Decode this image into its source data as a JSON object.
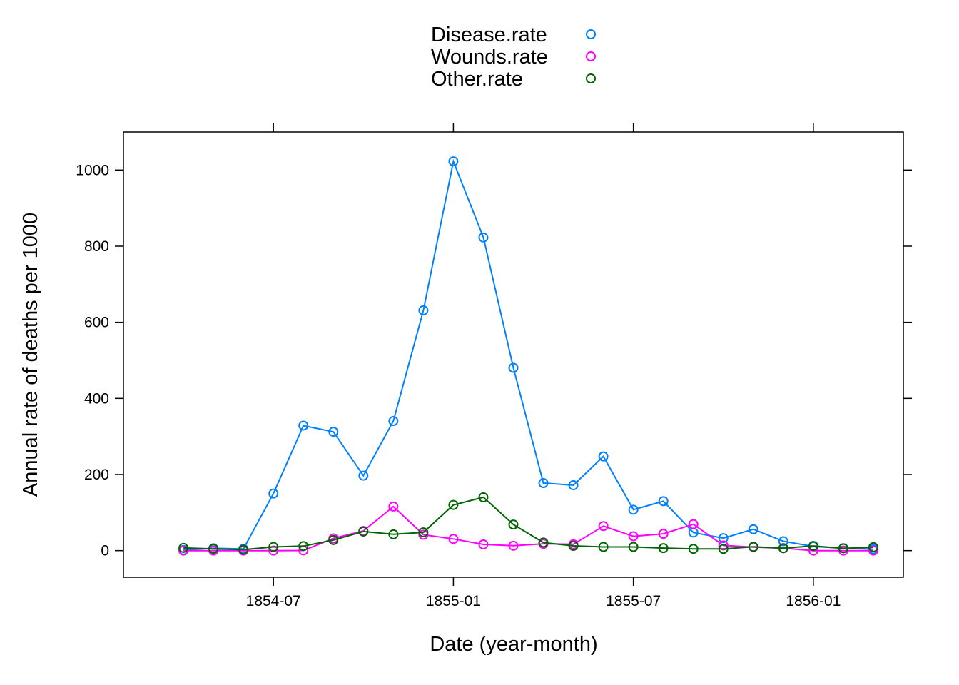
{
  "chart_data": {
    "type": "line",
    "xlabel": "Date (year-month)",
    "ylabel": "Annual rate of deaths per 1000",
    "x": [
      "1854-04",
      "1854-05",
      "1854-06",
      "1854-07",
      "1854-08",
      "1854-09",
      "1854-10",
      "1854-11",
      "1854-12",
      "1855-01",
      "1855-02",
      "1855-03",
      "1855-04",
      "1855-05",
      "1855-06",
      "1855-07",
      "1855-08",
      "1855-09",
      "1855-10",
      "1855-11",
      "1855-12",
      "1856-01",
      "1856-02",
      "1856-03"
    ],
    "x_ticks": [
      "1854-07",
      "1855-01",
      "1855-07",
      "1856-01"
    ],
    "y_ticks": [
      0,
      200,
      400,
      600,
      800,
      1000
    ],
    "xlim": [
      "1854-02",
      "1856-04"
    ],
    "ylim": [
      -70,
      1100
    ],
    "grid": false,
    "legend_position": "top",
    "series": [
      {
        "name": "Disease.rate",
        "color": "#0080ff",
        "values": [
          1.4,
          6.2,
          4.7,
          150.0,
          328.5,
          312.2,
          197.0,
          340.6,
          631.5,
          1022.8,
          822.8,
          480.3,
          177.5,
          171.8,
          247.6,
          107.5,
          129.9,
          47.5,
          32.8,
          56.1,
          24.6,
          10.9,
          6.5,
          3.9
        ]
      },
      {
        "name": "Wounds.rate",
        "color": "#ff00ff",
        "values": [
          0.0,
          0.0,
          0.0,
          0.0,
          0.4,
          32.1,
          51.7,
          115.8,
          41.7,
          30.7,
          16.3,
          12.8,
          17.9,
          16.6,
          64.5,
          37.7,
          44.1,
          69.4,
          13.6,
          9.3,
          6.4,
          0.0,
          0.0,
          0.0
        ]
      },
      {
        "name": "Other.rate",
        "color": "#006400",
        "values": [
          7.0,
          4.6,
          2.5,
          9.6,
          11.9,
          27.7,
          50.1,
          42.8,
          48.0,
          120.0,
          140.1,
          68.6,
          21.2,
          12.5,
          9.6,
          9.7,
          6.6,
          4.6,
          4.5,
          10.1,
          6.5,
          12.3,
          6.0,
          9.0
        ]
      }
    ]
  }
}
